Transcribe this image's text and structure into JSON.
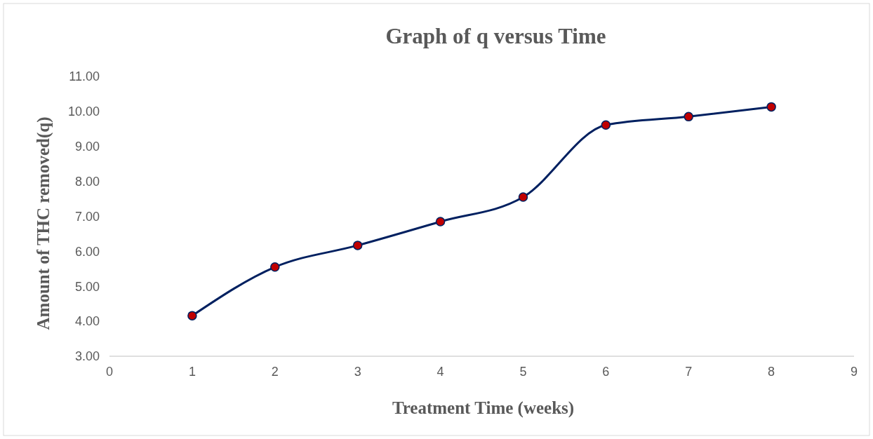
{
  "chart_data": {
    "type": "line",
    "title": "Graph of q versus Time",
    "xlabel": "Treatment Time (weeks)",
    "ylabel": "Amount of THC removed(q)",
    "x": [
      1,
      2,
      3,
      4,
      5,
      6,
      7,
      8
    ],
    "series": [
      {
        "color": "#002060",
        "values": [
          4.16,
          5.55,
          6.17,
          6.85,
          7.55,
          9.61,
          9.85,
          10.13
        ]
      }
    ],
    "xlim": [
      0,
      9
    ],
    "xticks": [
      0,
      1,
      2,
      3,
      4,
      5,
      6,
      7,
      8,
      9
    ],
    "ylim": [
      3,
      11
    ],
    "yticks": [
      {
        "value": 3,
        "label": "3.00"
      },
      {
        "value": 4,
        "label": "4.00"
      },
      {
        "value": 5,
        "label": "5.00"
      },
      {
        "value": 6,
        "label": "6.00"
      },
      {
        "value": 7,
        "label": "7.00"
      },
      {
        "value": 8,
        "label": "8.00"
      },
      {
        "value": 9,
        "label": "9.00"
      },
      {
        "value": 10,
        "label": "10.00"
      },
      {
        "value": 11,
        "label": "11.00"
      }
    ],
    "grid": false,
    "marker": "circle",
    "line_style": "solid"
  }
}
